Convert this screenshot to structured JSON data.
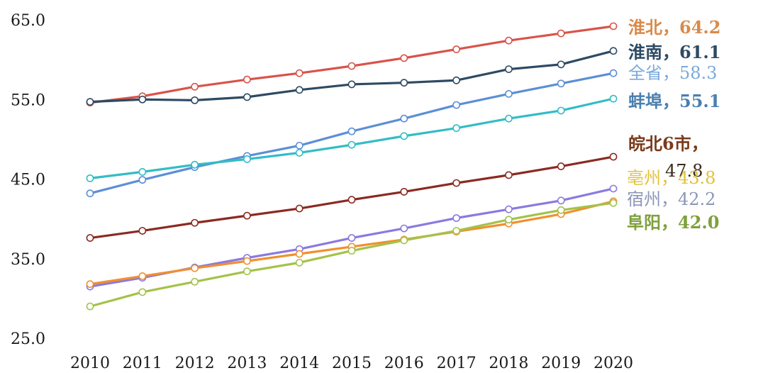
{
  "chart_data": {
    "type": "line",
    "title": "",
    "xlabel": "",
    "ylabel": "",
    "x": [
      "2010",
      "2011",
      "2012",
      "2013",
      "2014",
      "2015",
      "2016",
      "2017",
      "2018",
      "2019",
      "2020"
    ],
    "y_ticks": [
      "25.0",
      "35.0",
      "45.0",
      "55.0",
      "65.0"
    ],
    "ylim": [
      25,
      65
    ],
    "grid": false,
    "series": [
      {
        "name": "淮北",
        "end_label": "淮北，64.2",
        "color": "#d9534a",
        "label_color": "#d98a4a",
        "values": [
          54.6,
          55.4,
          56.6,
          57.5,
          58.3,
          59.2,
          60.2,
          61.3,
          62.4,
          63.3,
          64.2
        ]
      },
      {
        "name": "淮南",
        "end_label": "淮南，61.1",
        "color": "#2e4a63",
        "label_color": "#2e4a63",
        "values": [
          54.7,
          55.0,
          54.9,
          55.3,
          56.2,
          56.9,
          57.1,
          57.4,
          58.8,
          59.4,
          61.1
        ]
      },
      {
        "name": "全省",
        "end_label": "全省，58.3",
        "color": "#5b8fd6",
        "label_color": "#7aa9dc",
        "values": [
          43.2,
          44.9,
          46.5,
          47.9,
          49.2,
          51.0,
          52.6,
          54.3,
          55.7,
          57.0,
          58.3
        ]
      },
      {
        "name": "蚌埠",
        "end_label": "蚌埠，55.1",
        "color": "#33bcc6",
        "label_color": "#4a7fb0",
        "values": [
          45.1,
          45.9,
          46.8,
          47.5,
          48.3,
          49.3,
          50.4,
          51.4,
          52.6,
          53.6,
          55.1
        ]
      },
      {
        "name": "皖北6市",
        "end_label": "皖北6市，",
        "end_value_label": "47.8",
        "color": "#8b2a22",
        "label_color": "#7a3a1a",
        "values": [
          37.6,
          38.5,
          39.5,
          40.4,
          41.3,
          42.4,
          43.4,
          44.5,
          45.5,
          46.6,
          47.8
        ]
      },
      {
        "name": "亳州",
        "end_label": "亳州，43.8",
        "color": "#8a7ae0",
        "label_color": "#e3c13a",
        "values": [
          31.5,
          32.6,
          33.9,
          35.1,
          36.2,
          37.6,
          38.8,
          40.1,
          41.2,
          42.3,
          43.8
        ]
      },
      {
        "name": "宿州",
        "end_label": "宿州，42.2",
        "color": "#f0902e",
        "label_color": "#8b96b8",
        "values": [
          31.8,
          32.8,
          33.8,
          34.7,
          35.6,
          36.5,
          37.4,
          38.4,
          39.4,
          40.6,
          42.2
        ]
      },
      {
        "name": "阜阳",
        "end_label": "阜阳，42.0",
        "color": "#a4c24a",
        "label_color": "#7ea03a",
        "values": [
          29.0,
          30.8,
          32.1,
          33.4,
          34.5,
          36.0,
          37.3,
          38.5,
          39.9,
          41.1,
          42.0
        ]
      }
    ]
  }
}
